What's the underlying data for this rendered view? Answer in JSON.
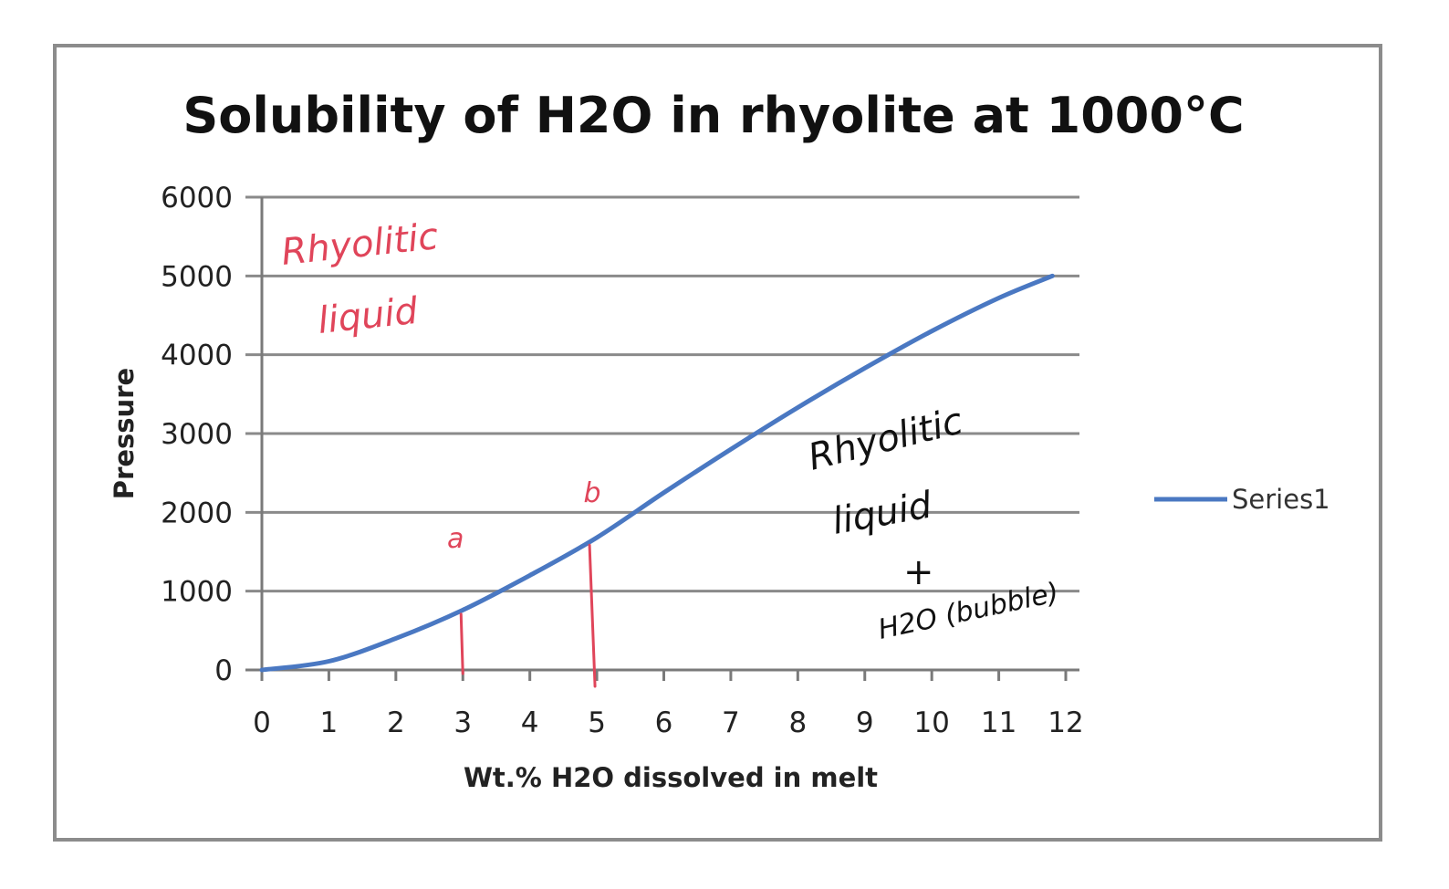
{
  "chart_data": {
    "type": "line",
    "title": "Solubility of H2O in rhyolite at 1000°C",
    "xlabel": "Wt.% H2O dissolved in melt",
    "ylabel": "Pressure",
    "xlim": [
      0,
      12
    ],
    "ylim": [
      0,
      6000
    ],
    "x_ticks": [
      "0",
      "1",
      "2",
      "3",
      "4",
      "5",
      "6",
      "7",
      "8",
      "9",
      "10",
      "11",
      "12"
    ],
    "y_ticks": [
      "0",
      "1000",
      "2000",
      "3000",
      "4000",
      "5000",
      "6000"
    ],
    "grid": true,
    "legend_position": "right",
    "series": [
      {
        "name": "Series1",
        "color": "#4a78c2",
        "x": [
          0,
          1,
          2,
          3,
          4,
          5,
          6,
          7,
          8,
          9,
          10,
          11,
          11.8
        ],
        "y": [
          0,
          110,
          400,
          760,
          1200,
          1680,
          2250,
          2800,
          3330,
          3830,
          4300,
          4720,
          5000
        ]
      }
    ],
    "annotations": [
      {
        "id": "rhyolitic-liquid-label",
        "line1": "Rhyolitic",
        "line2": "liquid",
        "color": "#e0455a"
      },
      {
        "id": "point-a",
        "text": "a",
        "x": 3,
        "y": 800,
        "color": "#e0455a"
      },
      {
        "id": "point-b",
        "text": "b",
        "x": 5,
        "y": 1700,
        "color": "#e0455a"
      },
      {
        "id": "two-phase-label",
        "line1": "Rhyolitic",
        "line2": "liquid",
        "line3": "+",
        "line4": "H2O (bubble)",
        "color": "#111111"
      }
    ]
  }
}
